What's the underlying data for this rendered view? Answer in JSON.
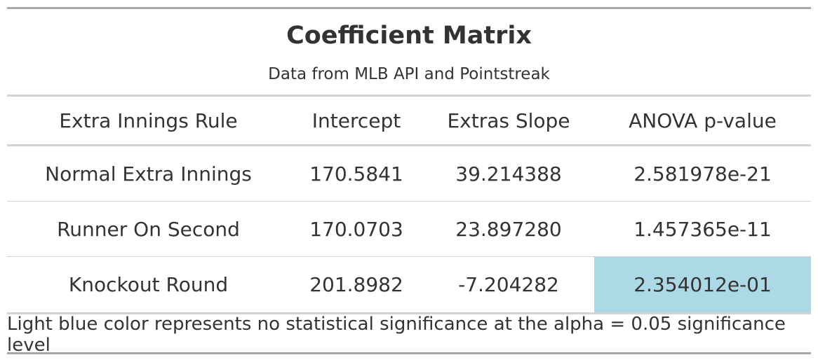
{
  "table": {
    "title": "Coefficient Matrix",
    "subtitle": "Data from MLB API and Pointstreak",
    "columns": [
      "Extra Innings Rule",
      "Intercept",
      "Extras Slope",
      "ANOVA p-value"
    ],
    "rows": [
      {
        "rule": "Normal Extra Innings",
        "intercept": "170.5841",
        "slope": "39.214388",
        "pvalue": "2.581978e-21",
        "highlight": false
      },
      {
        "rule": "Runner On Second",
        "intercept": "170.0703",
        "slope": "23.897280",
        "pvalue": "1.457365e-11",
        "highlight": false
      },
      {
        "rule": "Knockout Round",
        "intercept": "201.8982",
        "slope": "-7.204282",
        "pvalue": "2.354012e-01",
        "highlight": true
      }
    ],
    "footnote": "Light blue color represents no statistical significance at the alpha = 0.05 significance level",
    "colors": {
      "highlight": "#add8e6",
      "text": "#333333",
      "rule": "#d3d3d3",
      "outer_rule": "#a8a8a8"
    }
  }
}
